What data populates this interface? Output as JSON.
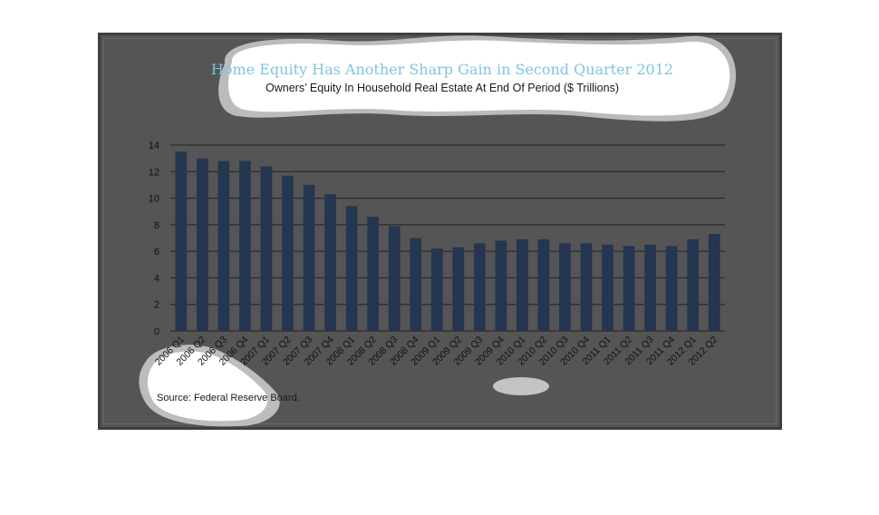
{
  "chart_data": {
    "type": "bar",
    "title": "Home Equity Has Another Sharp Gain in Second Quarter 2012",
    "subtitle": "Owners’ Equity In Household Real Estate At End Of Period ($ Trillions)",
    "categories": [
      "2006 Q1",
      "2006 Q2",
      "2006 Q3",
      "2006 Q4",
      "2007 Q1",
      "2007 Q2",
      "2007 Q3",
      "2007 Q4",
      "2008 Q1",
      "2008 Q2",
      "2008 Q3",
      "2008 Q4",
      "2009 Q1",
      "2009 Q2",
      "2009 Q3",
      "2009 Q4",
      "2010 Q1",
      "2010 Q2",
      "2010 Q3",
      "2010 Q4",
      "2011 Q1",
      "2011 Q2",
      "2011 Q3",
      "2011 Q4",
      "2012 Q1",
      "2012 Q2"
    ],
    "values": [
      13.5,
      13.0,
      12.8,
      12.8,
      12.4,
      11.7,
      11.0,
      10.3,
      9.4,
      8.6,
      7.9,
      7.0,
      6.2,
      6.3,
      6.6,
      6.8,
      6.9,
      6.9,
      6.6,
      6.6,
      6.5,
      6.4,
      6.5,
      6.4,
      6.9,
      7.3
    ],
    "ylim": [
      0,
      14
    ],
    "yticks": [
      0,
      2,
      4,
      6,
      8,
      10,
      12,
      14
    ],
    "grid": true,
    "bar_color": "#243650",
    "source": "Source:  Federal Reserve Board."
  },
  "colors": {
    "background": "#555555",
    "title": "#7fc4e0",
    "bar": "#243650",
    "gridline": "#222222"
  }
}
